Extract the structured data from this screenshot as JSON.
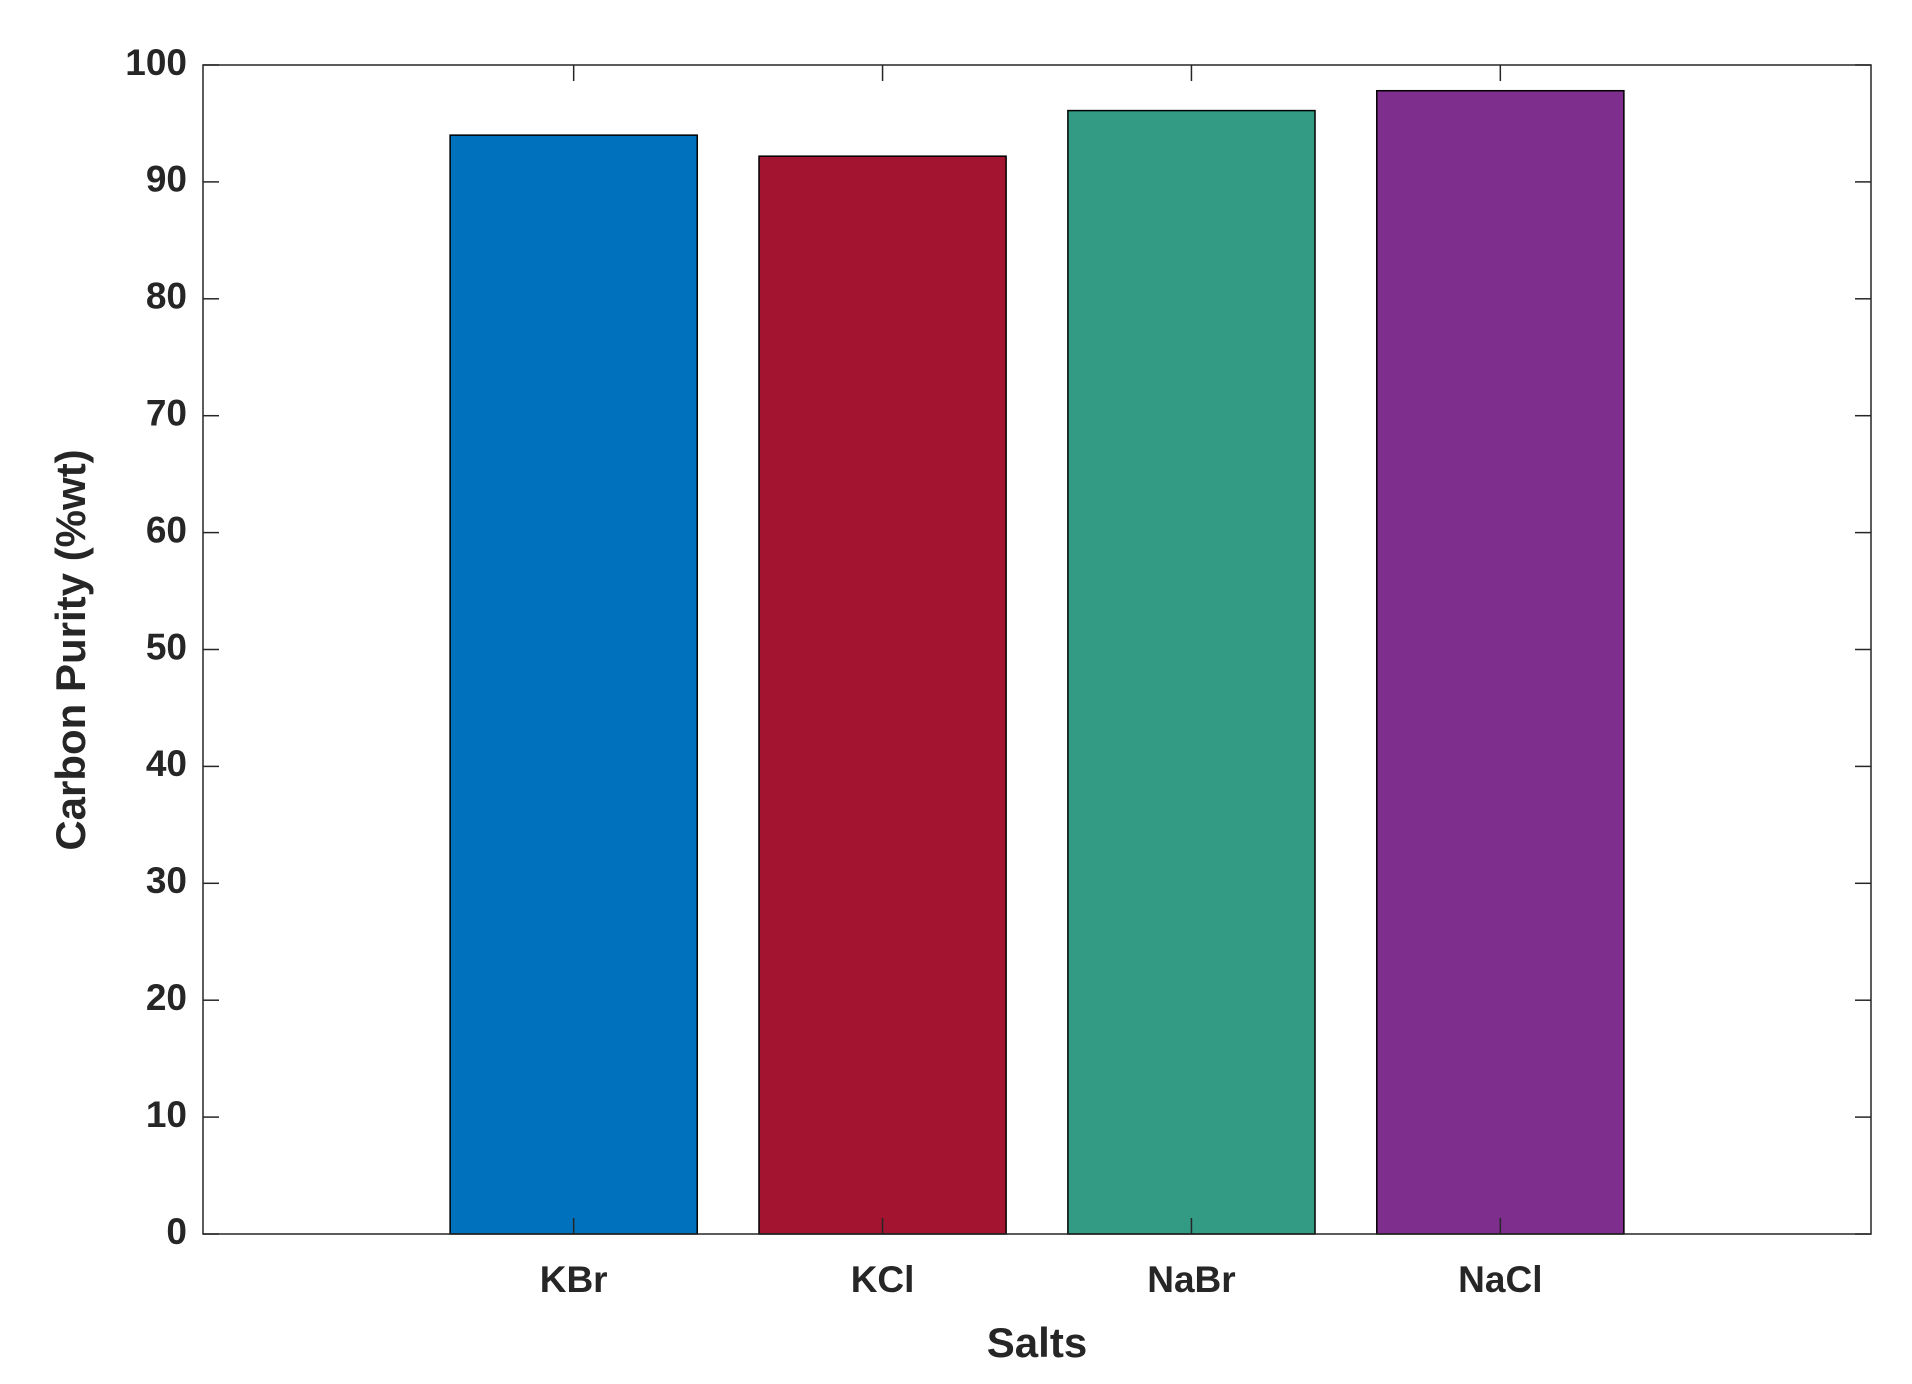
{
  "chart_data": {
    "type": "bar",
    "categories": [
      "KBr",
      "KCl",
      "NaBr",
      "NaCl"
    ],
    "values": [
      94,
      92.2,
      96.1,
      97.8
    ],
    "colors": [
      "#0072bd",
      "#a2142f",
      "#339a84",
      "#7e2f8e"
    ],
    "xlabel": "Salts",
    "ylabel": "Carbon Purity (%wt)",
    "ylim": [
      0,
      100
    ],
    "yticks": [
      0,
      10,
      20,
      30,
      40,
      50,
      60,
      70,
      80,
      90,
      100
    ],
    "grid": false
  }
}
